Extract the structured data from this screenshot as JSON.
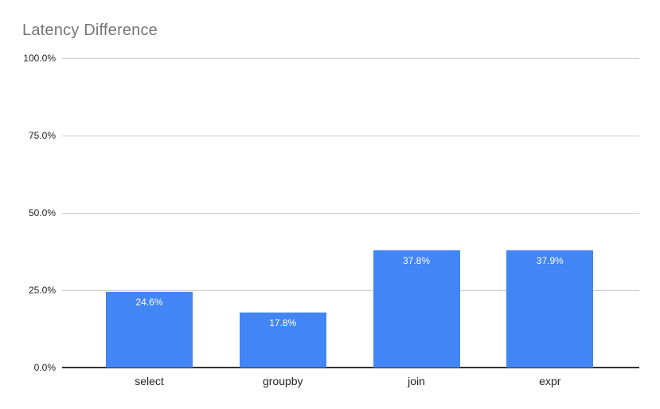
{
  "page": {
    "background": "#ffffff"
  },
  "chart_data": {
    "type": "bar",
    "title": "Latency Difference",
    "categories": [
      "select",
      "groupby",
      "join",
      "expr"
    ],
    "values": [
      24.6,
      17.8,
      37.8,
      37.9
    ],
    "value_labels": [
      "24.6%",
      "17.8%",
      "37.8%",
      "37.9%"
    ],
    "xlabel": "",
    "ylabel": "",
    "ylim": [
      0,
      100
    ],
    "yticks": [
      0,
      25,
      50,
      75,
      100
    ],
    "ytick_labels": [
      "0.0%",
      "25.0%",
      "50.0%",
      "75.0%",
      "100.0%"
    ],
    "grid": true,
    "legend": "none",
    "colors": {
      "bar": "#4285f4",
      "bar_label": "#ffffff",
      "title": "#757575",
      "axis_text": "#222222",
      "gridline": "#cccccc",
      "baseline": "#333333",
      "background": "#ffffff"
    }
  }
}
